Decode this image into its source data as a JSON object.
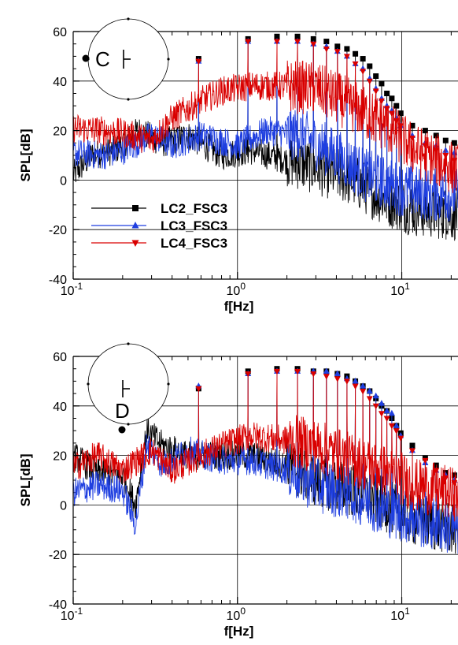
{
  "chart_data": [
    {
      "type": "line",
      "xscale": "log",
      "xlim": [
        0.1,
        22
      ],
      "ylim": [
        -40,
        60
      ],
      "xlabel": "f[Hz]",
      "ylabel": "SPL[dB]",
      "xticks": [
        {
          "value": 0.1,
          "base": "10",
          "exp": "-1"
        },
        {
          "value": 1,
          "base": "10",
          "exp": "0"
        },
        {
          "value": 10,
          "base": "10",
          "exp": "1"
        }
      ],
      "yticks": [
        -40,
        -20,
        0,
        20,
        40,
        60
      ],
      "grid": true,
      "legend": "bottom-left",
      "inset_label": "C",
      "series": [
        {
          "name": "LC2_FSC3",
          "color": "#000000",
          "marker": "square",
          "baseline": [
            [
              0.1,
              2
            ],
            [
              0.13,
              10
            ],
            [
              0.18,
              12
            ],
            [
              0.25,
              20
            ],
            [
              0.35,
              15
            ],
            [
              0.5,
              18
            ],
            [
              0.8,
              10
            ],
            [
              1.2,
              12
            ],
            [
              2,
              8
            ],
            [
              3,
              5
            ],
            [
              5,
              0
            ],
            [
              8,
              -8
            ],
            [
              12,
              -12
            ],
            [
              22,
              -14
            ]
          ],
          "peaks": [
            [
              0.58,
              49
            ],
            [
              1.16,
              57
            ],
            [
              1.74,
              58
            ],
            [
              2.32,
              58
            ],
            [
              2.9,
              57
            ],
            [
              3.48,
              56
            ],
            [
              4.06,
              54
            ],
            [
              4.64,
              53
            ],
            [
              5.22,
              51
            ],
            [
              5.8,
              49
            ],
            [
              6.38,
              46
            ],
            [
              6.96,
              42
            ],
            [
              7.54,
              39
            ],
            [
              8.12,
              35
            ],
            [
              8.7,
              33
            ],
            [
              9.28,
              30
            ],
            [
              9.86,
              27
            ],
            [
              11.6,
              22
            ],
            [
              13.9,
              20
            ],
            [
              16.2,
              18
            ],
            [
              18.5,
              16
            ],
            [
              20.9,
              15
            ]
          ]
        },
        {
          "name": "LC3_FSC3",
          "color": "#1f3fe0",
          "marker": "triangle-up",
          "baseline": [
            [
              0.1,
              11
            ],
            [
              0.15,
              10
            ],
            [
              0.2,
              12
            ],
            [
              0.3,
              18
            ],
            [
              0.4,
              14
            ],
            [
              0.6,
              18
            ],
            [
              1,
              14
            ],
            [
              1.5,
              20
            ],
            [
              2.5,
              18
            ],
            [
              4,
              10
            ],
            [
              6,
              2
            ],
            [
              10,
              -4
            ],
            [
              15,
              -6
            ],
            [
              22,
              -6
            ]
          ],
          "peaks": [
            [
              0.58,
              48
            ],
            [
              1.16,
              56
            ],
            [
              1.74,
              56
            ],
            [
              2.32,
              56
            ],
            [
              2.9,
              55
            ],
            [
              3.48,
              54
            ],
            [
              4.06,
              52
            ],
            [
              4.64,
              50
            ],
            [
              5.22,
              47
            ],
            [
              5.8,
              45
            ],
            [
              6.38,
              41
            ],
            [
              6.96,
              37
            ],
            [
              7.54,
              33
            ],
            [
              8.12,
              30
            ],
            [
              8.7,
              28
            ],
            [
              9.28,
              25
            ],
            [
              9.86,
              22
            ],
            [
              11.6,
              18
            ],
            [
              13.9,
              15
            ],
            [
              16.2,
              14
            ],
            [
              18.5,
              12
            ],
            [
              20.9,
              11
            ]
          ]
        },
        {
          "name": "LC4_FSC3",
          "color": "#d90000",
          "marker": "triangle-down",
          "baseline": [
            [
              0.1,
              21
            ],
            [
              0.15,
              20
            ],
            [
              0.2,
              19
            ],
            [
              0.3,
              16
            ],
            [
              0.4,
              25
            ],
            [
              0.6,
              32
            ],
            [
              0.8,
              36
            ],
            [
              1.2,
              38
            ],
            [
              2,
              38
            ],
            [
              3,
              37
            ],
            [
              5,
              30
            ],
            [
              8,
              22
            ],
            [
              12,
              12
            ],
            [
              22,
              4
            ]
          ],
          "peaks": [
            [
              0.58,
              48
            ],
            [
              1.16,
              56
            ],
            [
              1.74,
              56
            ],
            [
              2.32,
              56
            ],
            [
              2.9,
              55
            ],
            [
              3.48,
              53
            ],
            [
              4.06,
              52
            ],
            [
              4.64,
              50
            ],
            [
              5.22,
              47
            ],
            [
              5.8,
              44
            ],
            [
              6.38,
              40
            ],
            [
              6.96,
              36
            ],
            [
              7.54,
              32
            ],
            [
              8.12,
              29
            ],
            [
              8.7,
              27
            ],
            [
              9.28,
              24
            ],
            [
              9.86,
              22
            ],
            [
              11.6,
              17
            ],
            [
              13.9,
              14
            ],
            [
              16.2,
              12
            ],
            [
              18.5,
              10
            ],
            [
              20.9,
              8
            ]
          ]
        }
      ]
    },
    {
      "type": "line",
      "xscale": "log",
      "xlim": [
        0.1,
        22
      ],
      "ylim": [
        -40,
        60
      ],
      "xlabel": "f[Hz]",
      "ylabel": "SPL[dB]",
      "xticks": [
        {
          "value": 0.1,
          "base": "10",
          "exp": "-1"
        },
        {
          "value": 1,
          "base": "10",
          "exp": "0"
        },
        {
          "value": 10,
          "base": "10",
          "exp": "1"
        }
      ],
      "yticks": [
        -40,
        -20,
        0,
        20,
        40,
        60
      ],
      "grid": true,
      "inset_label": "D",
      "series": [
        {
          "name": "LC2_FSC3",
          "color": "#000000",
          "marker": "square",
          "baseline": [
            [
              0.1,
              20
            ],
            [
              0.14,
              13
            ],
            [
              0.2,
              12
            ],
            [
              0.24,
              0
            ],
            [
              0.28,
              30
            ],
            [
              0.35,
              24
            ],
            [
              0.5,
              20
            ],
            [
              0.8,
              20
            ],
            [
              1.2,
              20
            ],
            [
              2,
              16
            ],
            [
              3,
              10
            ],
            [
              5,
              6
            ],
            [
              8,
              0
            ],
            [
              12,
              -6
            ],
            [
              22,
              -10
            ]
          ],
          "peaks": [
            [
              0.58,
              47
            ],
            [
              1.16,
              54
            ],
            [
              1.74,
              55
            ],
            [
              2.32,
              55
            ],
            [
              2.9,
              54
            ],
            [
              3.48,
              54
            ],
            [
              4.06,
              53
            ],
            [
              4.64,
              52
            ],
            [
              5.22,
              50
            ],
            [
              5.8,
              48
            ],
            [
              6.38,
              46
            ],
            [
              6.96,
              43
            ],
            [
              7.54,
              40
            ],
            [
              8.12,
              38
            ],
            [
              8.7,
              35
            ],
            [
              9.28,
              32
            ],
            [
              9.86,
              29
            ],
            [
              11.6,
              24
            ],
            [
              13.9,
              19
            ],
            [
              16.2,
              16
            ],
            [
              18.5,
              13
            ],
            [
              20.9,
              12
            ]
          ]
        },
        {
          "name": "LC3_FSC3",
          "color": "#1f3fe0",
          "marker": "triangle-up",
          "baseline": [
            [
              0.1,
              5
            ],
            [
              0.14,
              8
            ],
            [
              0.2,
              6
            ],
            [
              0.24,
              -8
            ],
            [
              0.28,
              25
            ],
            [
              0.35,
              16
            ],
            [
              0.5,
              22
            ],
            [
              0.8,
              18
            ],
            [
              1.2,
              18
            ],
            [
              2,
              14
            ],
            [
              3,
              8
            ],
            [
              5,
              4
            ],
            [
              8,
              -2
            ],
            [
              12,
              -6
            ],
            [
              22,
              -10
            ]
          ],
          "peaks": [
            [
              0.58,
              48
            ],
            [
              1.16,
              53
            ],
            [
              1.74,
              54
            ],
            [
              2.32,
              54
            ],
            [
              2.9,
              54
            ],
            [
              3.48,
              54
            ],
            [
              4.06,
              53
            ],
            [
              4.64,
              51
            ],
            [
              5.22,
              50
            ],
            [
              5.8,
              48
            ],
            [
              6.38,
              46
            ],
            [
              6.96,
              44
            ],
            [
              7.54,
              41
            ],
            [
              8.12,
              38
            ],
            [
              8.7,
              37
            ],
            [
              9.28,
              32
            ],
            [
              9.86,
              28
            ],
            [
              11.6,
              22
            ],
            [
              13.9,
              17
            ],
            [
              16.2,
              14
            ],
            [
              18.5,
              12
            ],
            [
              20.9,
              10
            ]
          ]
        },
        {
          "name": "LC4_FSC3",
          "color": "#d90000",
          "marker": "triangle-down",
          "baseline": [
            [
              0.1,
              15
            ],
            [
              0.14,
              20
            ],
            [
              0.2,
              14
            ],
            [
              0.3,
              22
            ],
            [
              0.4,
              14
            ],
            [
              0.6,
              20
            ],
            [
              0.8,
              24
            ],
            [
              1.2,
              28
            ],
            [
              2,
              26
            ],
            [
              3,
              24
            ],
            [
              5,
              18
            ],
            [
              8,
              14
            ],
            [
              12,
              8
            ],
            [
              22,
              4
            ]
          ],
          "peaks": [
            [
              0.58,
              47
            ],
            [
              1.16,
              53
            ],
            [
              1.74,
              54
            ],
            [
              2.32,
              54
            ],
            [
              2.9,
              53
            ],
            [
              3.48,
              52
            ],
            [
              4.06,
              51
            ],
            [
              4.64,
              50
            ],
            [
              5.22,
              48
            ],
            [
              5.8,
              46
            ],
            [
              6.38,
              43
            ],
            [
              6.96,
              40
            ],
            [
              7.54,
              37
            ],
            [
              8.12,
              35
            ],
            [
              8.7,
              32
            ],
            [
              9.28,
              30
            ],
            [
              9.86,
              27
            ],
            [
              11.6,
              22
            ],
            [
              13.9,
              18
            ],
            [
              16.2,
              14
            ],
            [
              18.5,
              11
            ],
            [
              20.9,
              9
            ]
          ]
        }
      ]
    }
  ]
}
